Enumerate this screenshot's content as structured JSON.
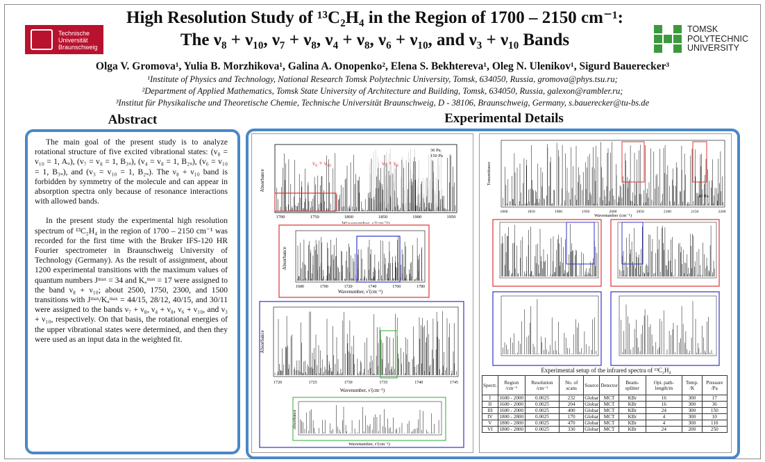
{
  "header": {
    "title_line1": "High Resolution Study of ¹³C₂H₄  in the Region of 1700 – 2150 cm⁻¹:",
    "title_line2": "The ν₈ + ν₁₀, ν₇ + ν₈, ν₄ + ν₈, ν₆ + ν₁₀, and ν₃ + ν₁₀ Bands",
    "authors": "Olga V. Gromova¹, Yulia B. Morzhikova¹, Galina A. Onopenko², Elena S. Bekhtereva¹, Oleg N. Ulenikov¹, Sigurd Bauerecker³",
    "affiliations": [
      "¹Institute of Physics and Technology, National Research Tomsk Polytechnic University, Tomsk, 634050, Russia, gromova@phys.tsu.ru;",
      "²Department of Applied Mathematics, Tomsk State University of Architecture and Building, Tomsk, 634050, Russia, galexon@rambler.ru;",
      "³Institut für Physikalische und Theoretische Chemie, Technische Universität Braunschweig, D - 38106, Braunschweig, Germany, s.bauerecker@tu-bs.de"
    ],
    "logo_left": [
      "Technische",
      "Universität",
      "Braunschweig"
    ],
    "logo_right": [
      "TOMSK",
      "POLYTECHNIC",
      "UNIVERSITY"
    ]
  },
  "abstract": {
    "title": "Abstract",
    "paragraphs": [
      "The main goal of the present study is to analyze rotational structure of five excited vibrational states: (v₈ = v₁₀ = 1, Aᵤ), (v₇ = v₈ = 1, B₃ᵤ), (v₄ = v₈ = 1, B₂ᵤ), (v₆ = v₁₀ = 1, B₃ᵤ), and (v₃ = v₁₀ = 1, B₂ᵤ). The ν₈ + ν₁₀ band is forbidden by symmetry of the molecule and can appear in absorption spectra only because of resonance interactions with allowed bands.",
      "In the present study the experimental high resolution spectrum of ¹³C₂H₄ in the region of 1700 – 2150 cm⁻¹ was recorded for the first time with the Bruker IFS-120 HR Fourier spectrometer in Braunschweig University of Technology (Germany). As the result of assignment, about 1200 experimental transitions with the maximum values of quantum numbers Jᵐᵃˣ = 34 and Kₐᵐᵃˣ = 17 were assigned to the band ν₈ + ν₁₀; about 2500, 1750, 2300, and 1500 transitions with Jᵐᵃˣ/Kₐᵐᵃˣ = 44/15, 28/12, 40/15, and 30/11 were assigned to the bands ν₇ + ν₈, ν₄ + ν₈, ν₆ + ν₁₀, and ν₃ + ν₁₀, respectively. On that basis, the rotational energies of the upper vibrational states were determined, and then they were used as an input data in the weighted fit."
    ]
  },
  "experimental": {
    "title": "Experimental Details",
    "plot1": {
      "ylabel": "Absorbance",
      "xlabel": "Wavenumber, ν̃ (cm⁻¹)",
      "xticks": [
        "1700",
        "1750",
        "1800",
        "1850",
        "1900",
        "1950"
      ],
      "yticks": [
        "0",
        "1",
        "2",
        "3"
      ],
      "legend": [
        "36 Pa",
        "150 Pa"
      ],
      "band_labels": [
        "ν₈ + ν₁₀",
        "ν₇ + ν₈"
      ]
    },
    "plot2": {
      "ylabel": "Absorbance",
      "xlabel": "Wavenumber, ν̃ (cm⁻¹)",
      "xticks": [
        "1680",
        "1700",
        "1720",
        "1740",
        "1760",
        "1780"
      ],
      "yticks": [
        "0.0",
        "0.1",
        "0.2",
        "0.3",
        "0.4",
        "0.5",
        "0.6"
      ]
    },
    "plot3": {
      "ylabel": "Absorbance",
      "xlabel": "Wavenumber, ν̃ (cm⁻¹)",
      "xticks": [
        "1720",
        "1725",
        "1730",
        "1735",
        "1740",
        "1745"
      ],
      "yticks": [
        "0.0",
        "0.2",
        "0.4",
        "0.6"
      ]
    },
    "plot4": {
      "ylabel": "Absorbance",
      "xlabel": "Wavenumber, ν̃ (cm⁻¹)"
    },
    "plot_right_top": {
      "ylabel": "Transmittance",
      "xlabel": "Wavenumber (cm⁻¹)",
      "xticks": [
        "1800",
        "1850",
        "1900",
        "1950",
        "2000",
        "2050",
        "2100",
        "2150",
        "2200"
      ],
      "legend": [
        "10 Pa"
      ]
    },
    "setup_caption": "Experimental setup of the infrared spectra of ¹³C₂H₄",
    "table": {
      "headers": [
        "Spectr.",
        "Region /cm⁻¹",
        "Resolution /cm⁻¹",
        "No. of scans",
        "Source",
        "Detector",
        "Beam-splitter",
        "Opt. path-length/m",
        "Temp. /K",
        "Pressure /Pa"
      ],
      "rows": [
        [
          "I",
          "1600 - 2000",
          "0.0025",
          "232",
          "Globar",
          "MCT",
          "KBr",
          "16",
          "300",
          "17"
        ],
        [
          "II",
          "1600 - 2000",
          "0.0025",
          "204",
          "Globar",
          "MCT",
          "KBr",
          "16",
          "300",
          "36"
        ],
        [
          "III",
          "1600 - 2000",
          "0.0025",
          "400",
          "Globar",
          "MCT",
          "KBr",
          "24",
          "300",
          "150"
        ],
        [
          "IV",
          "1800 - 2800",
          "0.0025",
          "170",
          "Globar",
          "MCT",
          "KBr",
          "4",
          "300",
          "10"
        ],
        [
          "V",
          "1800 - 2800",
          "0.0025",
          "470",
          "Globar",
          "MCT",
          "KBr",
          "4",
          "300",
          "110"
        ],
        [
          "VI",
          "1800 - 2800",
          "0.0025",
          "330",
          "Globar",
          "MCT",
          "KBr",
          "24",
          "200",
          "250"
        ]
      ]
    }
  }
}
